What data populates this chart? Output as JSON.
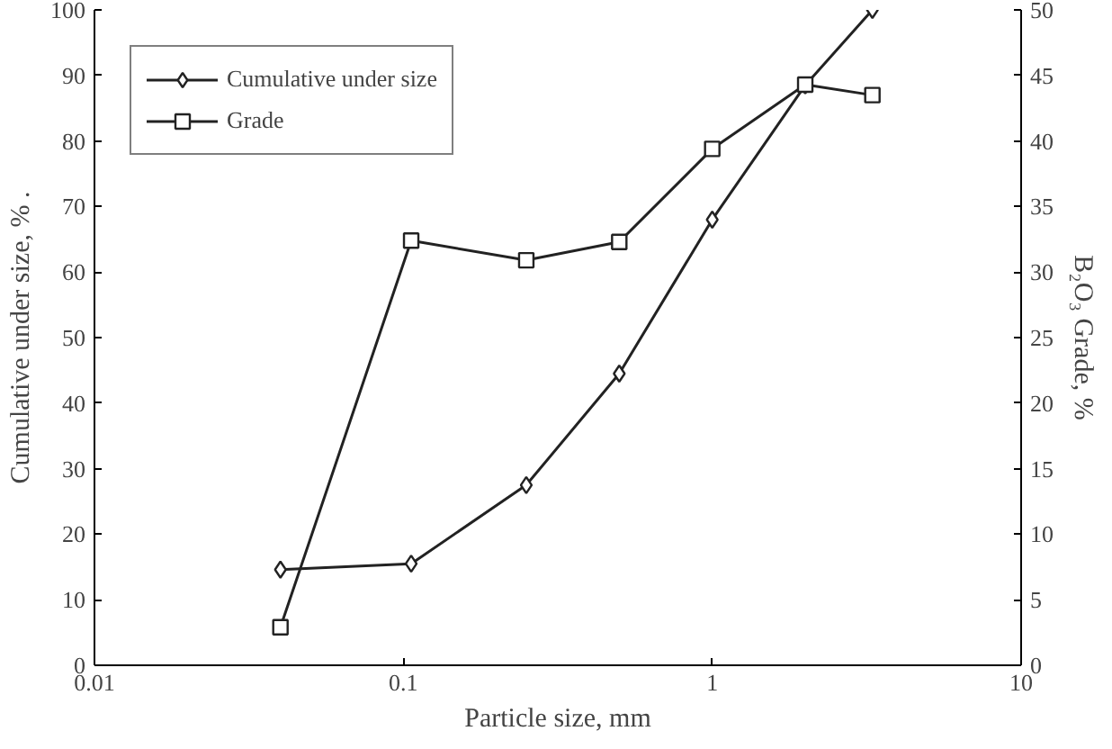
{
  "chart_data": {
    "type": "line",
    "xlabel": "Particle size, mm",
    "ylabel": "Cumulative under size, % .",
    "y2label": "B₂O₃ Grade, %",
    "log": "x",
    "xlim": [
      0.01,
      10
    ],
    "xticks": [
      0.01,
      0.1,
      1,
      10
    ],
    "ylim": [
      0,
      100
    ],
    "yticks": [
      0,
      10,
      20,
      30,
      40,
      50,
      60,
      70,
      80,
      90,
      100
    ],
    "y2lim": [
      0,
      50
    ],
    "y2ticks": [
      0,
      5,
      10,
      15,
      20,
      25,
      30,
      35,
      40,
      45,
      50
    ],
    "grid": false,
    "legend": "top left",
    "line_style": "solid",
    "series": [
      {
        "name": "Cumulative under size",
        "color": "#222222",
        "marker": "diamond",
        "x": [
          0.04,
          0.106,
          0.25,
          0.5,
          1,
          2,
          3.3
        ],
        "values": [
          14.6,
          15.5,
          27.5,
          44.5,
          68,
          88.5,
          100
        ]
      },
      {
        "name": "Grade",
        "color": "#222222",
        "marker": "square",
        "axis": "y2",
        "x": [
          0.04,
          0.106,
          0.25,
          0.5,
          1,
          2,
          3.3
        ],
        "values": [
          2.9,
          32.4,
          30.9,
          32.3,
          39.4,
          44.3,
          43.5
        ]
      }
    ]
  }
}
